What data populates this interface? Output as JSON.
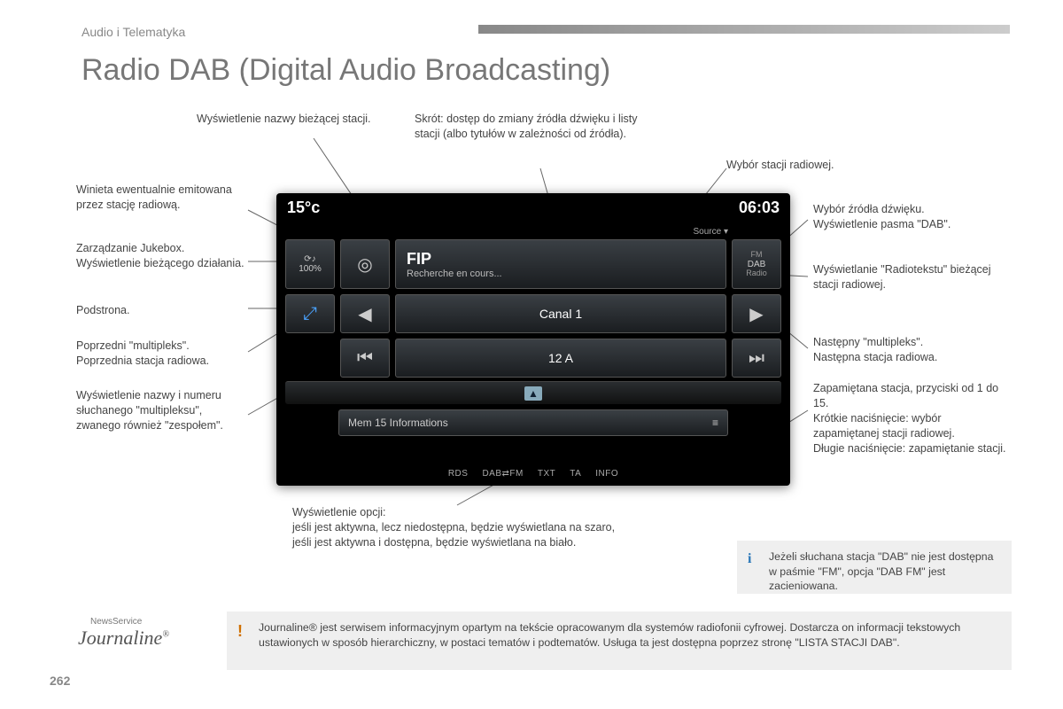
{
  "breadcrumb": "Audio i Telematyka",
  "title": "Radio DAB (Digital Audio Broadcasting)",
  "page_number": "262",
  "screen": {
    "temperature": "15°c",
    "clock": "06:03",
    "source_label": "Source",
    "jukebox_pct": "100%",
    "station_name": "FIP",
    "station_sub": "Recherche en cours...",
    "canal": "Canal 1",
    "mux": "12 A",
    "mem": "Mem 15 Informations",
    "src_btn_fm": "FM",
    "src_btn_dab": "DAB",
    "src_btn_sub": "Radio",
    "opts": {
      "rds": "RDS",
      "dabfm": "DAB⇄FM",
      "txt": "TXT",
      "ta": "TA",
      "info": "INFO"
    }
  },
  "callouts": {
    "c_station_name": "Wyświetlenie nazwy bieżącej stacji.",
    "c_shortcut": "Skrót: dostęp do zmiany źródła dźwięku i listy stacji (albo tytułów w zależności od źródła).",
    "c_station_select": "Wybór stacji radiowej.",
    "c_vignette": "Winieta ewentualnie emitowana przez stację radiową.",
    "c_source": "Wybór źródła dźwięku.\nWyświetlenie pasma \"DAB\".",
    "c_jukebox": "Zarządzanie Jukebox.\nWyświetlenie bieżącego działania.",
    "c_radiotext": "Wyświetlanie \"Radiotekstu\" bieżącej stacji radiowej.",
    "c_subpage": "Podstrona.",
    "c_prev_mux": "Poprzedni \"multipleks\".\nPoprzednia stacja radiowa.",
    "c_next_mux": "Następny \"multipleks\".\nNastępna stacja radiowa.",
    "c_mux_name": "Wyświetlenie nazwy i numeru słuchanego \"multipleksu\", zwanego również \"zespołem\".",
    "c_preset": "Zapamiętana stacja, przyciski od 1 do 15.\nKrótkie naciśnięcie: wybór zapamiętanej stacji radiowej.\nDługie naciśnięcie: zapamiętanie stacji.",
    "c_options": "Wyświetlenie opcji:\njeśli jest aktywna, lecz niedostępna, będzie wyświetlana na szaro,\njeśli jest aktywna i dostępna, będzie wyświetlana na biało."
  },
  "infobox": "Jeżeli słuchana stacja \"DAB\" nie jest dostępna w paśmie \"FM\", opcja \"DAB FM\" jest zacieniowana.",
  "warnbox": "Journaline® jest serwisem informacyjnym opartym na tekście opracowanym dla systemów radiofonii cyfrowej. Dostarcza on informacji tekstowych ustawionych w sposób hierarchiczny, w postaci tematów i podtematów. Usługa ta jest dostępna poprzez stronę \"LISTA STACJI DAB\".",
  "journaline_logo_top": "NewsService",
  "journaline_logo": "Journaline"
}
